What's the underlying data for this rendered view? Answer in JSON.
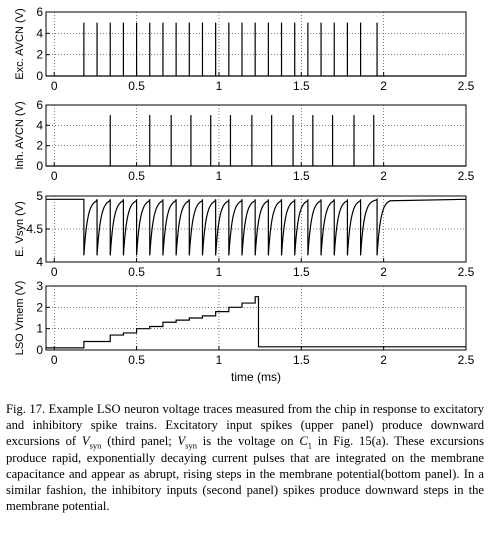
{
  "chart_data": [
    {
      "type": "line",
      "ylabel": "Exc. AVCN (V)",
      "xlabel": "",
      "xlim": [
        -0.05,
        2.5
      ],
      "ylim": [
        0,
        6
      ],
      "xticks": [
        "0",
        "0.5",
        "1",
        "1.5",
        "2",
        "2.5"
      ],
      "yticks": [
        "0",
        "2",
        "4",
        "6"
      ],
      "grid": true,
      "signal": "spike-train",
      "baseline": 0,
      "spike_height": 5,
      "spike_times": [
        0.18,
        0.26,
        0.34,
        0.42,
        0.5,
        0.58,
        0.66,
        0.74,
        0.82,
        0.9,
        0.98,
        1.06,
        1.14,
        1.22,
        1.3,
        1.38,
        1.46,
        1.54,
        1.62,
        1.7,
        1.78,
        1.86,
        1.96
      ]
    },
    {
      "type": "line",
      "ylabel": "Inh. AVCN (V)",
      "xlabel": "",
      "xlim": [
        -0.05,
        2.5
      ],
      "ylim": [
        0,
        6
      ],
      "xticks": [
        "0",
        "0.5",
        "1",
        "1.5",
        "2",
        "2.5"
      ],
      "yticks": [
        "0",
        "2",
        "4",
        "6"
      ],
      "grid": true,
      "signal": "spike-train",
      "baseline": 0,
      "spike_height": 5,
      "spike_times": [
        0.34,
        0.58,
        0.71,
        0.83,
        0.95,
        1.07,
        1.2,
        1.32,
        1.45,
        1.57,
        1.69,
        1.82,
        1.94
      ]
    },
    {
      "type": "line",
      "ylabel": "E. Vsyn (V)",
      "xlabel": "",
      "xlim": [
        -0.05,
        2.5
      ],
      "ylim": [
        4,
        5
      ],
      "xticks": [
        "0",
        "0.5",
        "1",
        "1.5",
        "2",
        "2.5"
      ],
      "yticks": [
        "4",
        "4.5",
        "5"
      ],
      "grid": true,
      "signal": "decaying-dips",
      "baseline": 4.95,
      "dip_level": 4.1,
      "dip_times": [
        0.18,
        0.26,
        0.34,
        0.42,
        0.5,
        0.58,
        0.66,
        0.74,
        0.82,
        0.9,
        0.98,
        1.06,
        1.14,
        1.22,
        1.3,
        1.38,
        1.46,
        1.54,
        1.62,
        1.7,
        1.78,
        1.86,
        1.96
      ]
    },
    {
      "type": "line",
      "ylabel": "LSO Vmem (V)",
      "xlabel": "time (ms)",
      "xlim": [
        -0.05,
        2.5
      ],
      "ylim": [
        0,
        3
      ],
      "xticks": [
        "0",
        "0.5",
        "1",
        "1.5",
        "2",
        "2.5"
      ],
      "yticks": [
        "0",
        "1",
        "2",
        "3"
      ],
      "grid": true,
      "signal": "step",
      "points": [
        [
          -0.05,
          0.1
        ],
        [
          0.1,
          0.1
        ],
        [
          0.18,
          0.4
        ],
        [
          0.26,
          0.4
        ],
        [
          0.34,
          0.7
        ],
        [
          0.42,
          0.8
        ],
        [
          0.5,
          1.0
        ],
        [
          0.58,
          1.1
        ],
        [
          0.66,
          1.3
        ],
        [
          0.74,
          1.4
        ],
        [
          0.82,
          1.5
        ],
        [
          0.9,
          1.6
        ],
        [
          0.98,
          1.8
        ],
        [
          1.06,
          2.0
        ],
        [
          1.14,
          2.2
        ],
        [
          1.22,
          2.5
        ],
        [
          1.24,
          2.5
        ],
        [
          1.24,
          0.15
        ],
        [
          2.5,
          0.15
        ]
      ]
    }
  ],
  "caption": {
    "part1": "Fig. 17.  Example LSO neuron voltage traces measured from the chip in response to excitatory and inhibitory spike trains. Excitatory input spikes (upper panel) produce downward excursions of ",
    "var1": "V",
    "sub1": "syn",
    "part2": " (third panel; ",
    "var2": "V",
    "sub2": "syn",
    "part3": " is the voltage on ",
    "var3": "C",
    "sub3": "1",
    "part4": " in Fig. 15(a). These excursions produce rapid, exponentially decaying current pulses that are integrated on the membrane capacitance and appear as abrupt, rising steps in the membrane potential(bottom panel). In a similar fashion, the inhibitory inputs (second panel) spikes produce downward steps in the membrane potential."
  }
}
